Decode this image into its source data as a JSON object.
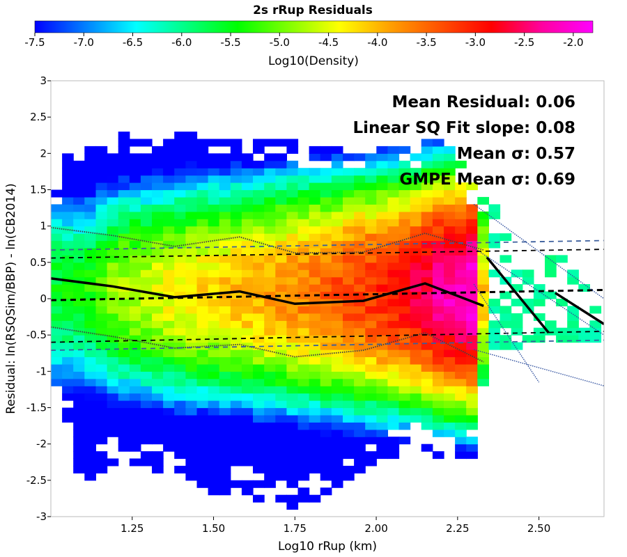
{
  "chart_data": {
    "type": "heatmap",
    "title": "2s rRup Residuals",
    "colorbar": {
      "label": "Log10(Density)",
      "range": [
        -7.5,
        -1.8
      ],
      "ticks": [
        "-7.5",
        "-7.0",
        "-6.5",
        "-6.0",
        "-5.5",
        "-5.0",
        "-4.5",
        "-4.0",
        "-3.5",
        "-3.0",
        "-2.5",
        "-2.0"
      ],
      "colors": [
        "#0000ff",
        "#0080ff",
        "#00ffff",
        "#00ff80",
        "#00ff00",
        "#80ff00",
        "#ffff00",
        "#ffa000",
        "#ff5000",
        "#ff0000",
        "#ff00a0",
        "#ff00ff"
      ]
    },
    "xlabel": "Log10 rRup (km)",
    "ylabel": "Residual: ln(RSQSim/BBP) - ln(CB2014)",
    "xlim": [
      1.0,
      2.7
    ],
    "ylim": [
      -3,
      3
    ],
    "xticks": [
      "1.25",
      "1.50",
      "1.75",
      "2.00",
      "2.25",
      "2.50"
    ],
    "yticks": [
      "-3",
      "-2.5",
      "-2",
      "-1.5",
      "-1",
      "-0.5",
      "0",
      "0.5",
      "1",
      "1.5",
      "2",
      "2.5",
      "3"
    ],
    "grid": false,
    "annotations": [
      "Mean Residual: 0.06",
      "Linear SQ Fit slope: 0.08",
      "Mean σ: 0.57",
      "GMPE Mean σ: 0.69"
    ],
    "density_bins": {
      "x_step": 0.0345,
      "y_step": 0.1,
      "columns": [
        {
          "x": 1.0,
          "y_range": [
            -1.5,
            1.2
          ],
          "peak": -5.6
        },
        {
          "x": 1.05,
          "y_range": [
            -1.6,
            1.9
          ],
          "peak": -5.5
        },
        {
          "x": 1.1,
          "y_range": [
            -2.6,
            1.9
          ],
          "peak": -5.5
        },
        {
          "x": 1.2,
          "y_range": [
            -2.1,
            2.2
          ],
          "peak": -4.8
        },
        {
          "x": 1.3,
          "y_range": [
            -2.3,
            2.1
          ],
          "peak": -4.6
        },
        {
          "x": 1.4,
          "y_range": [
            -2.4,
            2.2
          ],
          "peak": -4.3
        },
        {
          "x": 1.5,
          "y_range": [
            -2.6,
            2.1
          ],
          "peak": -4.2
        },
        {
          "x": 1.6,
          "y_range": [
            -2.6,
            2.1
          ],
          "peak": -4.0
        },
        {
          "x": 1.7,
          "y_range": [
            -2.8,
            2.1
          ],
          "peak": -3.8
        },
        {
          "x": 1.8,
          "y_range": [
            -2.7,
            2.0
          ],
          "peak": -3.6
        },
        {
          "x": 1.9,
          "y_range": [
            -2.4,
            2.0
          ],
          "peak": -3.3
        },
        {
          "x": 2.0,
          "y_range": [
            -2.2,
            2.0
          ],
          "peak": -3.1
        },
        {
          "x": 2.1,
          "y_range": [
            -2.0,
            2.0
          ],
          "peak": -2.8
        },
        {
          "x": 2.2,
          "y_range": [
            -2.1,
            2.2
          ],
          "peak": -2.3
        },
        {
          "x": 2.3,
          "y_range": [
            -2.1,
            1.5
          ],
          "peak": -2.0
        },
        {
          "x": 2.35,
          "y_range": [
            -0.6,
            1.3
          ],
          "peak": -5.8
        },
        {
          "x": 2.45,
          "y_range": [
            -0.6,
            0.2
          ],
          "peak": -5.8
        },
        {
          "x": 2.55,
          "y_range": [
            -0.5,
            0.6
          ],
          "peak": -5.7
        },
        {
          "x": 2.65,
          "y_range": [
            -0.5,
            0.0
          ],
          "peak": -5.8
        }
      ]
    },
    "series": [
      {
        "name": "mean",
        "style": "solid-thick",
        "x": [
          1.0,
          1.19,
          1.38,
          1.58,
          1.75,
          1.96,
          2.15,
          2.33
        ],
        "y": [
          0.28,
          0.17,
          0.02,
          0.1,
          -0.07,
          -0.03,
          0.21,
          -0.1
        ]
      },
      {
        "name": "mean-segment-2",
        "style": "solid-thick",
        "x": [
          2.34,
          2.53
        ],
        "y": [
          0.57,
          -0.47
        ]
      },
      {
        "style": "solid-thick-tail",
        "x": [
          2.55,
          2.7
        ],
        "y": [
          0.08,
          -0.35
        ]
      },
      {
        "name": "mean-plus-sigma",
        "style": "dotted",
        "x": [
          1.0,
          1.19,
          1.38,
          1.58,
          1.75,
          1.96,
          2.15,
          2.33
        ],
        "y": [
          0.98,
          0.87,
          0.72,
          0.85,
          0.63,
          0.64,
          0.9,
          0.67
        ]
      },
      {
        "name": "mean-minus-sigma",
        "style": "dotted",
        "x": [
          1.0,
          1.19,
          1.38,
          1.58,
          1.75,
          1.96,
          2.15,
          2.33
        ],
        "y": [
          -0.39,
          -0.52,
          -0.68,
          -0.63,
          -0.8,
          -0.71,
          -0.47,
          -0.87
        ]
      },
      {
        "name": "linear-fit",
        "style": "dashed-thick",
        "x": [
          1.0,
          2.7
        ],
        "y": [
          -0.02,
          0.12
        ]
      },
      {
        "name": "linear-fit-plus-sigma",
        "style": "dashed",
        "x": [
          1.0,
          2.7
        ],
        "y": [
          0.56,
          0.68
        ]
      },
      {
        "name": "linear-fit-minus-sigma",
        "style": "dashed",
        "x": [
          1.0,
          2.7
        ],
        "y": [
          -0.6,
          -0.45
        ]
      },
      {
        "name": "gmpe-plus-sigma",
        "style": "dashed-blue",
        "x": [
          1.0,
          2.7
        ],
        "y": [
          0.67,
          0.8
        ]
      },
      {
        "name": "gmpe-minus-sigma",
        "style": "dashed-blue",
        "x": [
          1.0,
          2.7
        ],
        "y": [
          -0.71,
          -0.57
        ]
      }
    ]
  }
}
